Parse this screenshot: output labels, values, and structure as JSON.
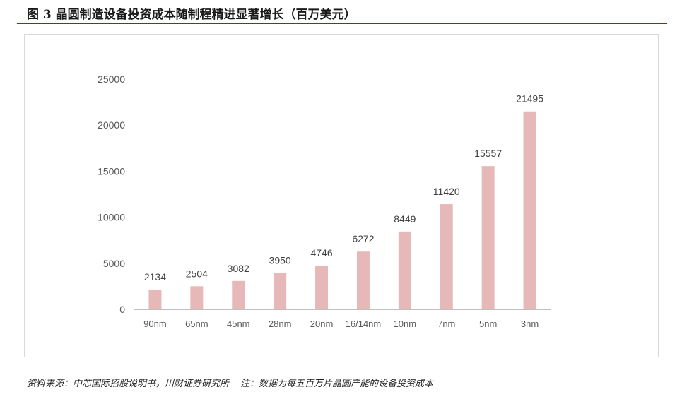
{
  "figure": {
    "title": "图 3 晶圆制造设备投资成本随制程精进显著增长（百万美元）",
    "source": "资料来源：中芯国际招股说明书，川财证券研究所",
    "note": "注：数据为每五百万片晶圆产能的设备投资成本"
  },
  "colors": {
    "bar": "#e6b8b7",
    "accent_rule": "#b5121b",
    "axis": "#bfbfbf"
  },
  "chart_data": {
    "type": "bar",
    "title": "",
    "xlabel": "",
    "ylabel": "",
    "categories": [
      "90nm",
      "65nm",
      "45nm",
      "28nm",
      "20nm",
      "16/14nm",
      "10nm",
      "7nm",
      "5nm",
      "3nm"
    ],
    "values": [
      2134,
      2504,
      3082,
      3950,
      4746,
      6272,
      8449,
      11420,
      15557,
      21495
    ],
    "ylim": [
      0,
      25000
    ],
    "yticks": [
      0,
      5000,
      10000,
      15000,
      20000,
      25000
    ],
    "grid": false,
    "data_labels": true,
    "legend": "none"
  }
}
